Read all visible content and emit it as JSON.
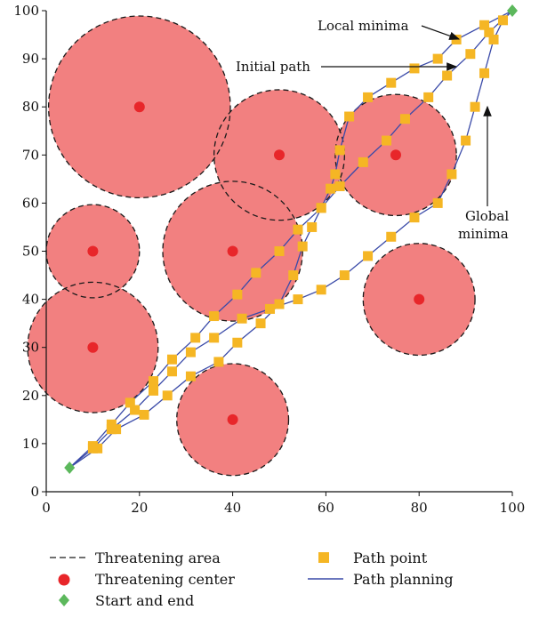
{
  "chart_data": {
    "type": "scatter",
    "xlim": [
      0,
      100
    ],
    "ylim": [
      0,
      100
    ],
    "x_ticks": [
      0,
      20,
      40,
      60,
      80,
      100
    ],
    "y_ticks": [
      0,
      10,
      20,
      30,
      40,
      50,
      60,
      70,
      80,
      90,
      100
    ],
    "grid": false,
    "threat_areas": [
      {
        "cx": 20,
        "cy": 80,
        "r": 19.5
      },
      {
        "cx": 50,
        "cy": 70,
        "r": 14
      },
      {
        "cx": 75,
        "cy": 70,
        "r": 13
      },
      {
        "cx": 10,
        "cy": 50,
        "r": 10
      },
      {
        "cx": 40,
        "cy": 50,
        "r": 15
      },
      {
        "cx": 10,
        "cy": 30,
        "r": 14
      },
      {
        "cx": 80,
        "cy": 40,
        "r": 12
      },
      {
        "cx": 40,
        "cy": 15,
        "r": 12
      }
    ],
    "threat_centers": [
      [
        20,
        80
      ],
      [
        50,
        70
      ],
      [
        75,
        70
      ],
      [
        10,
        50
      ],
      [
        40,
        50
      ],
      [
        10,
        30
      ],
      [
        80,
        40
      ],
      [
        40,
        15
      ]
    ],
    "start_end": [
      [
        5,
        5
      ],
      [
        100,
        100
      ]
    ],
    "series": [
      {
        "name": "Initial path",
        "path_points": [
          [
            5,
            5
          ],
          [
            10,
            9.5
          ],
          [
            14,
            14
          ],
          [
            18,
            18.5
          ],
          [
            23,
            23
          ],
          [
            27,
            27.5
          ],
          [
            32,
            32
          ],
          [
            36,
            36.5
          ],
          [
            41,
            41
          ],
          [
            45,
            45.5
          ],
          [
            50,
            50
          ],
          [
            54,
            54.5
          ],
          [
            59,
            59
          ],
          [
            63,
            63.5
          ],
          [
            68,
            68.5
          ],
          [
            73,
            73
          ],
          [
            77,
            77.5
          ],
          [
            82,
            82
          ],
          [
            86,
            86.5
          ],
          [
            91,
            91
          ],
          [
            95,
            95.5
          ],
          [
            100,
            100
          ]
        ]
      },
      {
        "name": "Local minima",
        "path_points": [
          [
            5,
            5
          ],
          [
            11,
            9
          ],
          [
            15,
            13
          ],
          [
            21,
            16
          ],
          [
            26,
            20
          ],
          [
            31,
            24
          ],
          [
            37,
            27
          ],
          [
            41,
            31
          ],
          [
            46,
            35
          ],
          [
            50,
            39
          ],
          [
            53,
            45
          ],
          [
            55,
            51
          ],
          [
            57,
            55
          ],
          [
            59,
            59
          ],
          [
            61,
            63
          ],
          [
            62,
            66
          ],
          [
            63,
            71
          ],
          [
            65,
            78
          ],
          [
            69,
            82
          ],
          [
            74,
            85
          ],
          [
            79,
            88
          ],
          [
            84,
            90
          ],
          [
            88,
            94
          ],
          [
            94,
            97
          ],
          [
            100,
            100
          ]
        ]
      },
      {
        "name": "Global minima",
        "path_points": [
          [
            5,
            5
          ],
          [
            10,
            9
          ],
          [
            14,
            13
          ],
          [
            19,
            17
          ],
          [
            23,
            21
          ],
          [
            27,
            25
          ],
          [
            31,
            29
          ],
          [
            36,
            32
          ],
          [
            42,
            36
          ],
          [
            48,
            38
          ],
          [
            54,
            40
          ],
          [
            59,
            42
          ],
          [
            64,
            45
          ],
          [
            69,
            49
          ],
          [
            74,
            53
          ],
          [
            79,
            57
          ],
          [
            84,
            60
          ],
          [
            87,
            66
          ],
          [
            90,
            73
          ],
          [
            92,
            80
          ],
          [
            94,
            87
          ],
          [
            96,
            94
          ],
          [
            98,
            98
          ],
          [
            100,
            100
          ]
        ]
      }
    ],
    "annotations": [
      {
        "text": "Local minima",
        "target": [
          87,
          93.5
        ]
      },
      {
        "text": "Initial path",
        "target": [
          87.5,
          89
        ]
      },
      {
        "text": "Global",
        "target": [
          94,
          80
        ]
      },
      {
        "text": "minima",
        "target": [
          94,
          80
        ]
      }
    ],
    "legend": [
      {
        "label": "Threatening area",
        "symbol": "dashed-line"
      },
      {
        "label": "Threatening center",
        "symbol": "red-dot"
      },
      {
        "label": "Start and end",
        "symbol": "green-diamond"
      },
      {
        "label": "Path point",
        "symbol": "yellow-square"
      },
      {
        "label": "Path planning",
        "symbol": "blue-line"
      }
    ],
    "colors": {
      "area_fill": "#f28080",
      "area_stroke": "#1a1a1a",
      "center": "#e8262a",
      "start_end": "#5cb85c",
      "path_point": "#f5b624",
      "path_line": "#3a4aa8",
      "axis": "#111111"
    }
  }
}
